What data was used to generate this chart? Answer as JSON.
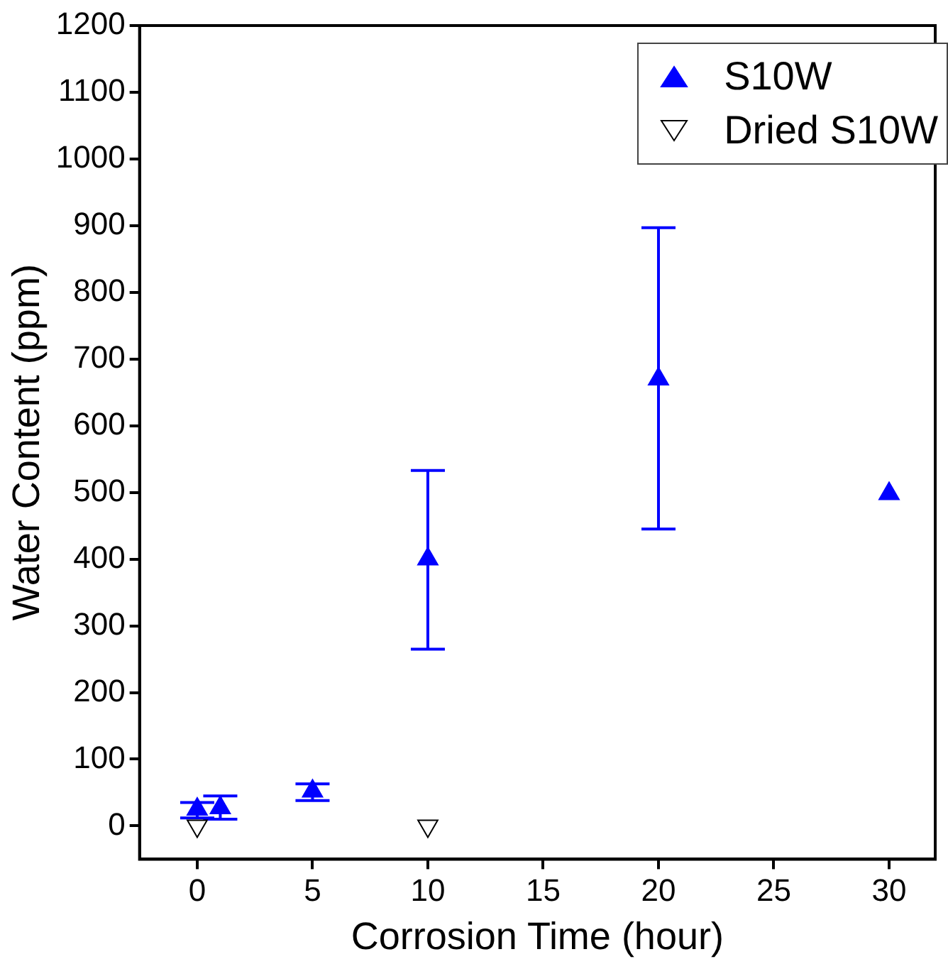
{
  "chart_data": {
    "type": "scatter",
    "xlabel": "Corrosion Time (hour)",
    "ylabel": "Water Content (ppm)",
    "xlim": [
      -2.5,
      32
    ],
    "xticks": [
      0,
      5,
      10,
      15,
      20,
      25,
      30
    ],
    "ylim": [
      -50,
      1200
    ],
    "yticks": [
      0,
      100,
      200,
      300,
      400,
      500,
      600,
      700,
      800,
      900,
      1000,
      1100,
      1200
    ],
    "grid": false,
    "legend": "top right",
    "series": [
      {
        "name": "S10W",
        "color": "#0000ff",
        "marker": "triangle",
        "x": [
          0,
          1,
          5,
          10,
          20,
          30
        ],
        "values": [
          25,
          27,
          52,
          400,
          670,
          498
        ],
        "errors": [
          [
            12,
            35
          ],
          [
            10,
            45
          ],
          [
            38,
            63
          ],
          [
            265,
            533
          ],
          [
            445,
            897
          ],
          null
        ]
      },
      {
        "name": "Dried S10W",
        "color": "#000000",
        "marker": "triangle-down",
        "x": [
          0,
          10
        ],
        "values": [
          0,
          0
        ]
      }
    ]
  }
}
